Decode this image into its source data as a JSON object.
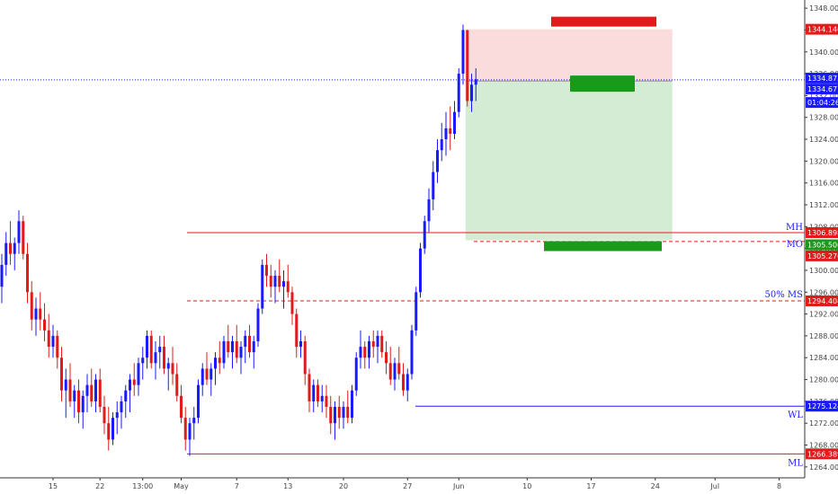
{
  "chart_data": {
    "type": "candlestick",
    "instrument_note": "",
    "y_axis": {
      "min": 1262,
      "max": 1349.5,
      "ticks": [
        1264,
        1268,
        1272,
        1276,
        1280,
        1284,
        1288,
        1292,
        1296,
        1300,
        1304,
        1308,
        1312,
        1316,
        1320,
        1324,
        1328,
        1332,
        1336,
        1340,
        1344,
        1348
      ],
      "tick_labels": [
        "1264.000",
        "1268.000",
        "1272.000",
        "1276.000",
        "1280.000",
        "1284.000",
        "1288.000",
        "1292.000",
        "1296.000",
        "1300.000",
        "1304.000",
        "1308.000",
        "1312.000",
        "1316.000",
        "1320.000",
        "1324.000",
        "1328.000",
        "1332.000",
        "1336.000",
        "1340.000",
        "1344.000",
        "1348.000"
      ]
    },
    "x_axis": {
      "tick_labels": [
        "15",
        "22",
        "13:00",
        "May",
        "7",
        "13",
        "20",
        "27",
        "Jun",
        "10",
        "17",
        "24",
        "Jul",
        "8"
      ],
      "tick_index": [
        12,
        23,
        33,
        42,
        55,
        67,
        80,
        95,
        107,
        123,
        138,
        153,
        167,
        182
      ]
    },
    "candles": [
      [
        1297,
        1303,
        1294,
        1301
      ],
      [
        1301,
        1307,
        1299,
        1305
      ],
      [
        1305,
        1309,
        1301,
        1303
      ],
      [
        1303,
        1306,
        1300,
        1305
      ],
      [
        1305,
        1311,
        1303,
        1309
      ],
      [
        1309,
        1310,
        1302,
        1303
      ],
      [
        1303,
        1305,
        1294,
        1296
      ],
      [
        1296,
        1298,
        1289,
        1291
      ],
      [
        1291,
        1295,
        1288,
        1293
      ],
      [
        1293,
        1296,
        1289,
        1291
      ],
      [
        1291,
        1294,
        1287,
        1289
      ],
      [
        1289,
        1292,
        1284,
        1286
      ],
      [
        1286,
        1290,
        1284,
        1288
      ],
      [
        1288,
        1289,
        1282,
        1284
      ],
      [
        1284,
        1286,
        1276,
        1278
      ],
      [
        1278,
        1282,
        1273,
        1280
      ],
      [
        1280,
        1283,
        1275,
        1276
      ],
      [
        1276,
        1279,
        1273,
        1278
      ],
      [
        1278,
        1280,
        1272,
        1274
      ],
      [
        1274,
        1278,
        1271,
        1277
      ],
      [
        1277,
        1281,
        1274,
        1279
      ],
      [
        1279,
        1282,
        1275,
        1276
      ],
      [
        1276,
        1281,
        1274,
        1280
      ],
      [
        1280,
        1282,
        1274,
        1275
      ],
      [
        1275,
        1277,
        1270,
        1272
      ],
      [
        1272,
        1275,
        1267,
        1269
      ],
      [
        1269,
        1274,
        1268,
        1273
      ],
      [
        1273,
        1276,
        1270,
        1274
      ],
      [
        1274,
        1277,
        1271,
        1276
      ],
      [
        1276,
        1279,
        1273,
        1278
      ],
      [
        1278,
        1281,
        1274,
        1280
      ],
      [
        1280,
        1283,
        1277,
        1279
      ],
      [
        1279,
        1284,
        1277,
        1283
      ],
      [
        1283,
        1286,
        1280,
        1284
      ],
      [
        1284,
        1289,
        1282,
        1288
      ],
      [
        1288,
        1289,
        1282,
        1283
      ],
      [
        1283,
        1287,
        1280,
        1285
      ],
      [
        1285,
        1288,
        1282,
        1286
      ],
      [
        1286,
        1288,
        1281,
        1282
      ],
      [
        1282,
        1284,
        1278,
        1283
      ],
      [
        1283,
        1286,
        1279,
        1281
      ],
      [
        1281,
        1283,
        1276,
        1277
      ],
      [
        1277,
        1279,
        1272,
        1273
      ],
      [
        1273,
        1275,
        1267,
        1269
      ],
      [
        1269,
        1273,
        1266,
        1272
      ],
      [
        1272,
        1275,
        1269,
        1273
      ],
      [
        1273,
        1280,
        1272,
        1279
      ],
      [
        1279,
        1283,
        1277,
        1282
      ],
      [
        1282,
        1285,
        1279,
        1280
      ],
      [
        1280,
        1283,
        1277,
        1282
      ],
      [
        1282,
        1285,
        1279,
        1284
      ],
      [
        1284,
        1287,
        1281,
        1283
      ],
      [
        1283,
        1288,
        1282,
        1287
      ],
      [
        1287,
        1290,
        1284,
        1285
      ],
      [
        1285,
        1288,
        1282,
        1287
      ],
      [
        1287,
        1290,
        1283,
        1284
      ],
      [
        1284,
        1287,
        1281,
        1286
      ],
      [
        1286,
        1289,
        1283,
        1288
      ],
      [
        1288,
        1290,
        1284,
        1285
      ],
      [
        1285,
        1288,
        1282,
        1287
      ],
      [
        1287,
        1294,
        1286,
        1293
      ],
      [
        1293,
        1302,
        1292,
        1301
      ],
      [
        1301,
        1303,
        1297,
        1299
      ],
      [
        1299,
        1301,
        1295,
        1297
      ],
      [
        1297,
        1300,
        1294,
        1299
      ],
      [
        1299,
        1302,
        1296,
        1297
      ],
      [
        1297,
        1300,
        1293,
        1298
      ],
      [
        1298,
        1301,
        1295,
        1296
      ],
      [
        1296,
        1297,
        1290,
        1292
      ],
      [
        1292,
        1293,
        1284,
        1286
      ],
      [
        1286,
        1289,
        1284,
        1287
      ],
      [
        1287,
        1288,
        1279,
        1281
      ],
      [
        1281,
        1282,
        1274,
        1276
      ],
      [
        1276,
        1280,
        1274,
        1279
      ],
      [
        1279,
        1280,
        1275,
        1276
      ],
      [
        1276,
        1279,
        1274,
        1277
      ],
      [
        1277,
        1279,
        1273,
        1275
      ],
      [
        1275,
        1277,
        1270,
        1272
      ],
      [
        1272,
        1276,
        1269,
        1275
      ],
      [
        1275,
        1277,
        1271,
        1273
      ],
      [
        1273,
        1276,
        1271,
        1275
      ],
      [
        1275,
        1278,
        1272,
        1273
      ],
      [
        1273,
        1279,
        1272,
        1278
      ],
      [
        1278,
        1285,
        1277,
        1284
      ],
      [
        1284,
        1289,
        1282,
        1286
      ],
      [
        1286,
        1287,
        1282,
        1284
      ],
      [
        1284,
        1288,
        1282,
        1287
      ],
      [
        1287,
        1289,
        1284,
        1286
      ],
      [
        1286,
        1289,
        1283,
        1288
      ],
      [
        1288,
        1289,
        1284,
        1285
      ],
      [
        1285,
        1287,
        1281,
        1283
      ],
      [
        1283,
        1286,
        1279,
        1280
      ],
      [
        1280,
        1284,
        1278,
        1283
      ],
      [
        1283,
        1286,
        1280,
        1281
      ],
      [
        1281,
        1283,
        1277,
        1278
      ],
      [
        1278,
        1282,
        1276,
        1281
      ],
      [
        1281,
        1290,
        1280,
        1289
      ],
      [
        1289,
        1297,
        1288,
        1296
      ],
      [
        1296,
        1305,
        1295,
        1304
      ],
      [
        1304,
        1310,
        1303,
        1309
      ],
      [
        1309,
        1315,
        1307,
        1313
      ],
      [
        1313,
        1320,
        1311,
        1318
      ],
      [
        1318,
        1324,
        1316,
        1322
      ],
      [
        1322,
        1327,
        1320,
        1324
      ],
      [
        1324,
        1329,
        1321,
        1326
      ],
      [
        1326,
        1330,
        1322,
        1325
      ],
      [
        1325,
        1331,
        1324,
        1329
      ],
      [
        1329,
        1337,
        1328,
        1336
      ],
      [
        1336,
        1345,
        1334,
        1344
      ],
      [
        1344,
        1344,
        1330,
        1331
      ],
      [
        1331,
        1336,
        1329,
        1334
      ],
      [
        1334,
        1337,
        1331,
        1335
      ]
    ],
    "levels": [
      {
        "label": "MH",
        "value": 1306.898,
        "color": "#e11b1b",
        "dashed": false
      },
      {
        "label": "MO",
        "value": 1305.276,
        "color": "#e11b1b",
        "dashed": true
      },
      {
        "label": "50% MS",
        "value": 1294.404,
        "color": "#e11b1b",
        "dashed": true
      },
      {
        "label": "WL",
        "value": 1275.124,
        "color": "#1a1aff",
        "dashed": false
      },
      {
        "label": "ML",
        "value": 1266.389,
        "color": "#e11b1b",
        "dashed": false
      }
    ],
    "current_price": {
      "value": 1334.875,
      "color": "#1a1aff"
    },
    "price_tags": [
      {
        "value": 1344.14,
        "text": "1344.140",
        "color": "#e11b1b"
      },
      {
        "value": 1334.875,
        "text": "1334.875",
        "color": "#1a1aff"
      },
      {
        "value": 1334.677,
        "text": "1334.677",
        "color": "#1a1aff"
      },
      {
        "value": 1332.1,
        "text": "01:04:26",
        "color": "#1a1aff"
      },
      {
        "value": 1306.898,
        "text": "1306.898",
        "color": "#e11b1b"
      },
      {
        "value": 1305.5,
        "text": "1305.500",
        "color": "#1a9a1a"
      },
      {
        "value": 1305.276,
        "text": "1305.276",
        "color": "#e11b1b"
      },
      {
        "value": 1294.404,
        "text": "1294.404",
        "color": "#e11b1b"
      },
      {
        "value": 1275.124,
        "text": "1275.124",
        "color": "#1a1aff"
      },
      {
        "value": 1266.389,
        "text": "1266.389",
        "color": "#e11b1b"
      }
    ],
    "position": {
      "entry": 1334.677,
      "stop": 1344.14,
      "target": 1305.5,
      "start_index": 109,
      "end_index": 157
    },
    "colors": {
      "up": "#1a1aff",
      "down": "#e11b1b",
      "profit_zone": "#d4ecd4",
      "loss_zone": "#fbdcdc",
      "grid": "#ffffff",
      "axis_line": "#333333"
    }
  }
}
